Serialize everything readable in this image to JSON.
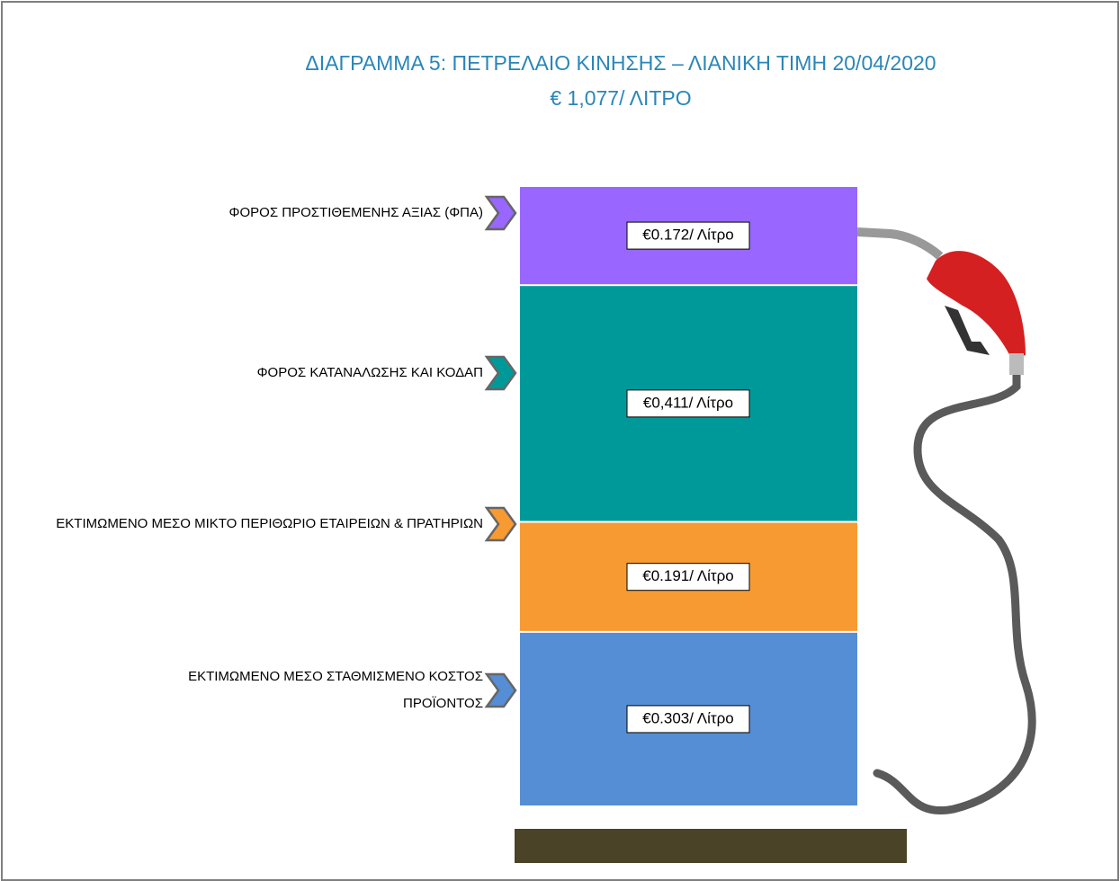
{
  "chart_data": {
    "type": "bar",
    "stacked": true,
    "title": "ΔΙΑΓΡΑΜΜΑ 5: ΠΕΤΡΕΛΑΙΟ ΚΙΝΗΣΗΣ – ΛΙΑΝΙΚΗ ΤΙΜΗ 20/04/2020",
    "subtitle": "€ 1,077/ ΛΙΤΡΟ",
    "series": [
      {
        "name": "ΕΚΤΙΜΩΜΕΝΟ ΜΕΣΟ ΣΤΑΘΜΙΣΜΕΝΟ ΚΟΣΤΟΣ ΠΡΟΪΟΝΤΟΣ",
        "color": "#558ed5",
        "values": [
          0.303
        ],
        "value_labels": [
          "€0.303/ Λίτρο"
        ]
      },
      {
        "name": "ΕΚΤΙΜΩΜΕΝΟ ΜΕΣΟ ΜΙΚΤΟ ΠΕΡΙΘΩΡΙΟ ΕΤΑΙΡΕΙΩΝ & ΠΡΑΤΗΡΙΩΝ",
        "color": "#f79a32",
        "values": [
          0.191
        ],
        "value_labels": [
          "€0.191/ Λίτρο"
        ]
      },
      {
        "name": "ΦΟΡΟΣ ΚΑΤΑΝΑΛΩΣΗΣ ΚΑΙ ΚΟΔΑΠ",
        "color": "#009999",
        "values": [
          0.411
        ],
        "value_labels": [
          "€0,411/ Λίτρο"
        ]
      },
      {
        "name": "ΦΟΡΟΣ ΠΡΟΣΤΙΘΕΜΕΝΗΣ ΑΞΙΑΣ (ΦΠΑ)",
        "color": "#9966ff",
        "values": [
          0.172
        ],
        "value_labels": [
          "€0.172/ Λίτρο"
        ]
      }
    ]
  }
}
